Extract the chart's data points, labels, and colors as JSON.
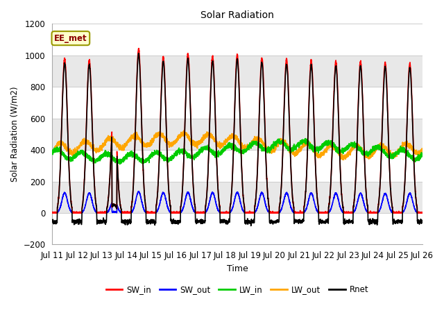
{
  "title": "Solar Radiation",
  "ylabel": "Solar Radiation (W/m2)",
  "xlabel": "Time",
  "annotation": "EE_met",
  "ylim": [
    -200,
    1200
  ],
  "yticks": [
    -200,
    0,
    200,
    400,
    600,
    800,
    1000,
    1200
  ],
  "n_days": 15,
  "points_per_day": 288,
  "bg_color_light": "#e8e8e8",
  "bg_color_dark": "#f8f8f8",
  "grid_color": "#ffffff",
  "lines": {
    "SW_in": {
      "color": "#ff0000",
      "lw": 1.2,
      "zorder": 5
    },
    "SW_out": {
      "color": "#0000ff",
      "lw": 1.2,
      "zorder": 4
    },
    "LW_in": {
      "color": "#00cc00",
      "lw": 1.2,
      "zorder": 3
    },
    "LW_out": {
      "color": "#ffa500",
      "lw": 1.2,
      "zorder": 2
    },
    "Rnet": {
      "color": "#000000",
      "lw": 1.2,
      "zorder": 6
    }
  },
  "legend_labels": [
    "SW_in",
    "SW_out",
    "LW_in",
    "LW_out",
    "Rnet"
  ],
  "legend_colors": [
    "#ff0000",
    "#0000ff",
    "#00cc00",
    "#ffa500",
    "#000000"
  ],
  "x_tick_labels": [
    "Jul 11",
    "Jul 12",
    "Jul 13",
    "Jul 14",
    "Jul 15",
    "Jul 16",
    "Jul 17",
    "Jul 18",
    "Jul 19",
    "Jul 20",
    "Jul 21",
    "Jul 22",
    "Jul 23",
    "Jul 24",
    "Jul 25",
    "Jul 26"
  ],
  "band_colors": [
    "#ffffff",
    "#e8e8e8"
  ],
  "band_edges": [
    -200,
    0,
    200,
    400,
    600,
    800,
    1000,
    1200
  ]
}
